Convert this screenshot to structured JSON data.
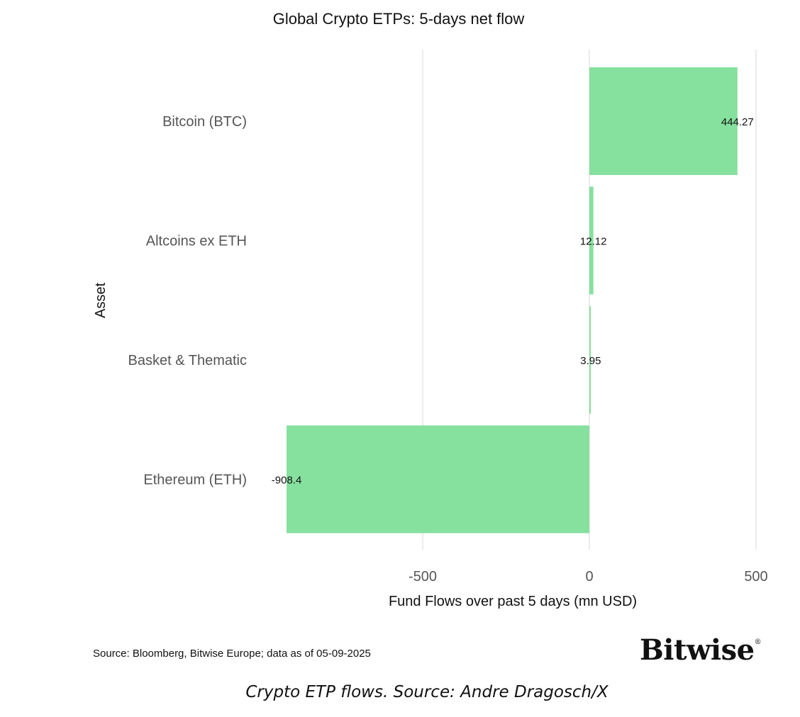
{
  "chart_data": {
    "type": "bar",
    "orientation": "horizontal",
    "title": "Global Crypto ETPs: 5-days net flow",
    "xlabel": "Fund Flows over past 5 days (mn USD)",
    "ylabel": "Asset",
    "categories": [
      "Bitcoin (BTC)",
      "Altcoins ex ETH",
      "Basket & Thematic",
      "Ethereum (ETH)"
    ],
    "values": [
      444.27,
      12.12,
      3.95,
      -908.4
    ],
    "value_labels": [
      "444.27",
      "12.12",
      "3.95",
      "-908.4"
    ],
    "xticks": [
      -500,
      0,
      500
    ],
    "xtick_labels": [
      "-500",
      "0",
      "500"
    ],
    "xlim": [
      -910,
      500
    ],
    "grid": "vertical",
    "bar_color": "#86e09e",
    "grid_color": "#d9d9d9"
  },
  "footer": {
    "source": "Source: Bloomberg, Bitwise Europe; data as of  05-09-2025",
    "brand": "Bitwise",
    "brand_mark": "®"
  },
  "caption": "Crypto ETP flows. Source: Andre Dragosch/X"
}
